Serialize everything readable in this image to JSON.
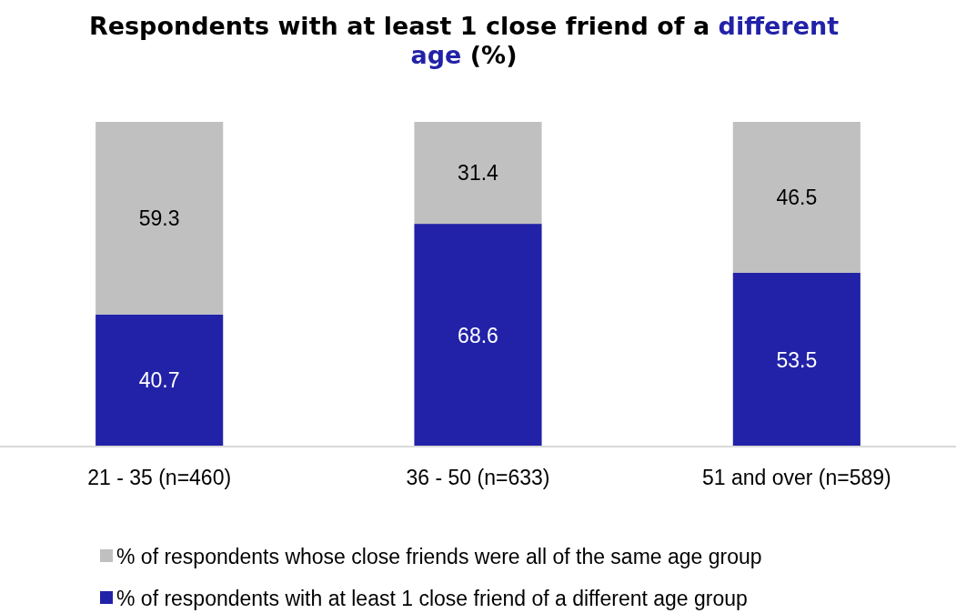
{
  "chart_data": {
    "type": "bar",
    "title": "Respondents with at least 1 close friend of a different age (%)",
    "categories": [
      "21 - 35 (n=460)",
      "36 - 50 (n=633)",
      "51 and over (n=589)"
    ],
    "stacked": true,
    "ylim": [
      0,
      100
    ],
    "data_labels": true,
    "legend": "bottom",
    "series": [
      {
        "name": "% of respondents with at least 1 close friend of a different age group",
        "color": "#2222a8",
        "values": [
          40.7,
          68.6,
          53.5
        ]
      },
      {
        "name": "% of respondents whose close friends were all of the same age group",
        "color": "#c0c0c0",
        "values": [
          59.3,
          31.4,
          46.5
        ]
      }
    ]
  }
}
